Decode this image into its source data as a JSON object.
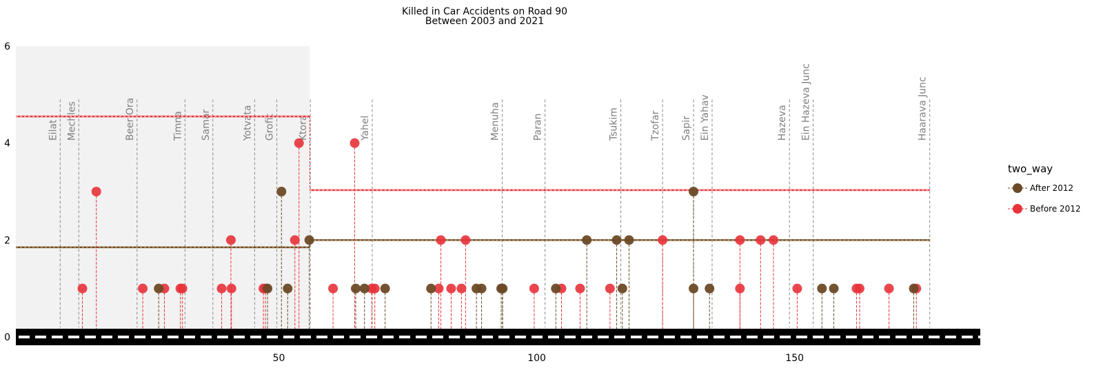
{
  "chart_data": {
    "type": "scatter",
    "title": [
      "Killed in Car Accidents on Road 90",
      "Between 2003 and 2021"
    ],
    "xlabel": "",
    "ylabel": "",
    "xlim": [
      -1,
      186
    ],
    "ylim": [
      0,
      6
    ],
    "xticks": [
      50,
      100,
      150
    ],
    "yticks": [
      0,
      2,
      4,
      6
    ],
    "grid": false,
    "shaded_x_range": [
      -1,
      56
    ],
    "road_stripe": true,
    "legend": {
      "title": "two_way",
      "placement": "right",
      "entries": [
        {
          "label": "After 2012",
          "color": "#6b4a26"
        },
        {
          "label": "Before 2012",
          "color": "#e8323a"
        }
      ]
    },
    "places": [
      {
        "name": "Eilat",
        "x": 7.6
      },
      {
        "name": "Mechles",
        "x": 11.2
      },
      {
        "name": "Beer Ora",
        "x": 22.5
      },
      {
        "name": "Timna",
        "x": 31.8
      },
      {
        "name": "Samar",
        "x": 37.2
      },
      {
        "name": "Yotvata",
        "x": 45.3
      },
      {
        "name": "Grofit",
        "x": 49.6
      },
      {
        "name": "Ktora",
        "x": 56.1
      },
      {
        "name": "Yahel",
        "x": 68.1
      },
      {
        "name": "Menuha",
        "x": 93.3
      },
      {
        "name": "Paran",
        "x": 101.6
      },
      {
        "name": "Tsukim",
        "x": 116.3
      },
      {
        "name": "Tzofar",
        "x": 124.4
      },
      {
        "name": "Sapir",
        "x": 130.4
      },
      {
        "name": "Ein Yahav",
        "x": 134
      },
      {
        "name": "Hazeva",
        "x": 149
      },
      {
        "name": "Ein Hazeva Junc",
        "x": 153.6
      },
      {
        "name": "Haarava Junc",
        "x": 176.2
      }
    ],
    "series": [
      {
        "name": "After 2012",
        "color": "#6b4a26",
        "mean": [
          {
            "x_start": -1,
            "x_end": 56,
            "y": 1.85
          },
          {
            "x_start": 56,
            "x_end": 176.2,
            "y": 2
          }
        ],
        "points": [
          {
            "x": 26.7,
            "y": 1
          },
          {
            "x": 47.8,
            "y": 1
          },
          {
            "x": 50.5,
            "y": 3
          },
          {
            "x": 51.7,
            "y": 1
          },
          {
            "x": 55.9,
            "y": 2
          },
          {
            "x": 64.9,
            "y": 1
          },
          {
            "x": 66.6,
            "y": 1
          },
          {
            "x": 70.6,
            "y": 1
          },
          {
            "x": 79.5,
            "y": 1
          },
          {
            "x": 88.3,
            "y": 1
          },
          {
            "x": 89.3,
            "y": 1
          },
          {
            "x": 93.1,
            "y": 1
          },
          {
            "x": 93.4,
            "y": 1
          },
          {
            "x": 103.7,
            "y": 1
          },
          {
            "x": 109.7,
            "y": 2
          },
          {
            "x": 115.5,
            "y": 2
          },
          {
            "x": 116.6,
            "y": 1
          },
          {
            "x": 117.9,
            "y": 2
          },
          {
            "x": 130.4,
            "y": 3
          },
          {
            "x": 130.4,
            "y": 1
          },
          {
            "x": 133.5,
            "y": 1
          },
          {
            "x": 155.3,
            "y": 1
          },
          {
            "x": 157.6,
            "y": 1
          },
          {
            "x": 173.1,
            "y": 1
          }
        ]
      },
      {
        "name": "Before 2012",
        "color": "#e8323a",
        "mean": [
          {
            "x_start": -1,
            "x_end": 56,
            "y": 4.55
          },
          {
            "x_start": 56,
            "x_end": 176.2,
            "y": 3.03
          }
        ],
        "points": [
          {
            "x": 11.9,
            "y": 1
          },
          {
            "x": 14.6,
            "y": 3
          },
          {
            "x": 23.6,
            "y": 1
          },
          {
            "x": 27.8,
            "y": 1
          },
          {
            "x": 30.9,
            "y": 1
          },
          {
            "x": 31.3,
            "y": 1
          },
          {
            "x": 38.9,
            "y": 1
          },
          {
            "x": 40.7,
            "y": 2
          },
          {
            "x": 40.8,
            "y": 1
          },
          {
            "x": 47.0,
            "y": 1
          },
          {
            "x": 47.4,
            "y": 1
          },
          {
            "x": 53.1,
            "y": 2
          },
          {
            "x": 53.9,
            "y": 4
          },
          {
            "x": 60.5,
            "y": 1
          },
          {
            "x": 64.7,
            "y": 4
          },
          {
            "x": 68.0,
            "y": 1
          },
          {
            "x": 68.6,
            "y": 1
          },
          {
            "x": 81.0,
            "y": 1
          },
          {
            "x": 81.4,
            "y": 2
          },
          {
            "x": 83.4,
            "y": 1
          },
          {
            "x": 85.4,
            "y": 1
          },
          {
            "x": 86.2,
            "y": 2
          },
          {
            "x": 99.5,
            "y": 1
          },
          {
            "x": 104.8,
            "y": 1
          },
          {
            "x": 108.4,
            "y": 1
          },
          {
            "x": 114.2,
            "y": 1
          },
          {
            "x": 124.4,
            "y": 2
          },
          {
            "x": 139.4,
            "y": 2
          },
          {
            "x": 139.4,
            "y": 1
          },
          {
            "x": 143.4,
            "y": 2
          },
          {
            "x": 145.9,
            "y": 2
          },
          {
            "x": 150.5,
            "y": 1
          },
          {
            "x": 162.0,
            "y": 1
          },
          {
            "x": 162.6,
            "y": 1
          },
          {
            "x": 168.3,
            "y": 1
          },
          {
            "x": 173.6,
            "y": 1
          }
        ]
      }
    ]
  }
}
